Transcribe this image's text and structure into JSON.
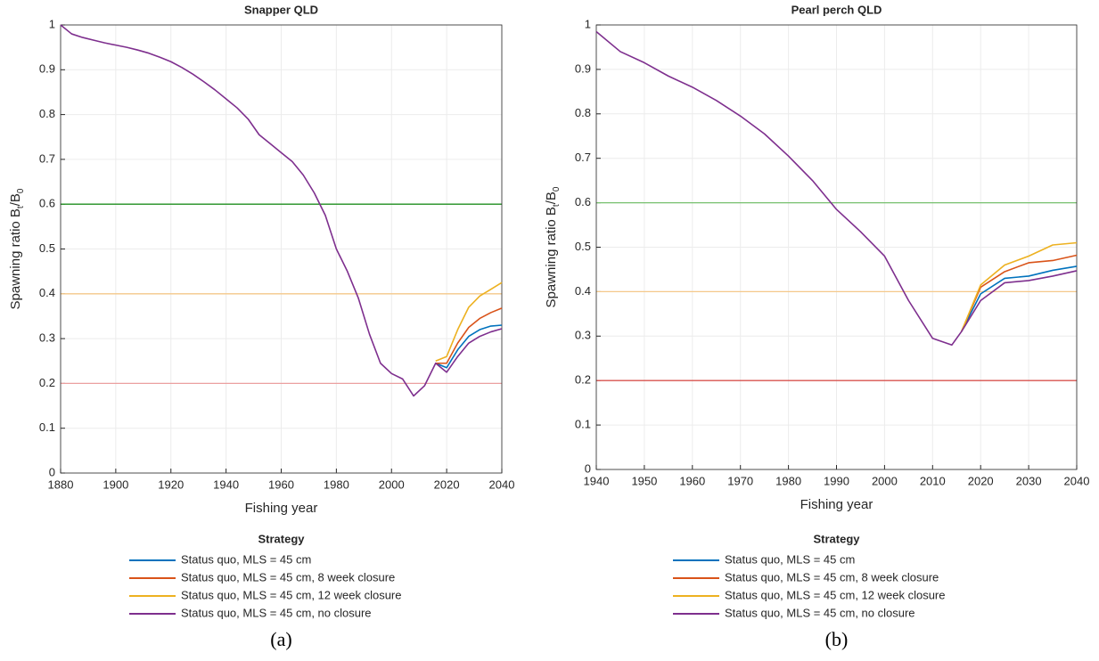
{
  "chart_data": [
    {
      "type": "line",
      "title": "Snapper QLD",
      "xlabel": "Fishing year",
      "ylabel": [
        "Spawning ratio B",
        "t",
        "/B",
        "0"
      ],
      "xlim": [
        1880,
        2040
      ],
      "ylim": [
        0,
        1
      ],
      "xticks": [
        1880,
        1900,
        1920,
        1940,
        1960,
        1980,
        2000,
        2020,
        2040
      ],
      "yticks": [
        0,
        0.1,
        0.2,
        0.3,
        0.4,
        0.5,
        0.6,
        0.7,
        0.8,
        0.9,
        1
      ],
      "grid": true,
      "legend": "bottom",
      "legend_title": "Strategy",
      "caption": "(a)",
      "reference_lines": [
        {
          "value": 0.6,
          "color": "#1f8f1f"
        },
        {
          "value": 0.4,
          "color": "#f5c98a"
        },
        {
          "value": 0.2,
          "color": "#eba0a0"
        }
      ],
      "x": [
        1880,
        1884,
        1888,
        1892,
        1896,
        1900,
        1904,
        1908,
        1912,
        1916,
        1920,
        1924,
        1928,
        1932,
        1936,
        1940,
        1944,
        1948,
        1952,
        1956,
        1960,
        1964,
        1968,
        1972,
        1976,
        1980,
        1984,
        1988,
        1992,
        1996,
        2000,
        2004,
        2008,
        2012,
        2016,
        2020,
        2024,
        2028,
        2032,
        2036,
        2040
      ],
      "series": [
        {
          "name": "Status quo, MLS = 45 cm",
          "color": "#0072bd",
          "values": [
            null,
            null,
            null,
            null,
            null,
            null,
            null,
            null,
            null,
            null,
            null,
            null,
            null,
            null,
            null,
            null,
            null,
            null,
            null,
            null,
            null,
            null,
            null,
            null,
            null,
            null,
            null,
            null,
            null,
            null,
            null,
            null,
            null,
            null,
            0.245,
            0.235,
            0.275,
            0.305,
            0.32,
            0.328,
            0.33
          ]
        },
        {
          "name": "Status quo, MLS = 45 cm, 8 week closure",
          "color": "#d95319",
          "values": [
            null,
            null,
            null,
            null,
            null,
            null,
            null,
            null,
            null,
            null,
            null,
            null,
            null,
            null,
            null,
            null,
            null,
            null,
            null,
            null,
            null,
            null,
            null,
            null,
            null,
            null,
            null,
            null,
            null,
            null,
            null,
            null,
            null,
            null,
            0.245,
            0.245,
            0.29,
            0.325,
            0.345,
            0.358,
            0.368
          ]
        },
        {
          "name": "Status quo, MLS = 45 cm, 12 week closure",
          "color": "#edb120",
          "values": [
            null,
            null,
            null,
            null,
            null,
            null,
            null,
            null,
            null,
            null,
            null,
            null,
            null,
            null,
            null,
            null,
            null,
            null,
            null,
            null,
            null,
            null,
            null,
            null,
            null,
            null,
            null,
            null,
            null,
            null,
            null,
            null,
            null,
            null,
            0.25,
            0.26,
            0.32,
            0.37,
            0.395,
            0.41,
            0.425
          ]
        },
        {
          "name": "Status quo, MLS = 45 cm, no closure",
          "color": "#7e2f8e",
          "values": [
            1.0,
            0.98,
            0.972,
            0.966,
            0.96,
            0.955,
            0.95,
            0.944,
            0.937,
            0.928,
            0.918,
            0.905,
            0.89,
            0.873,
            0.855,
            0.835,
            0.815,
            0.79,
            0.755,
            0.735,
            0.715,
            0.695,
            0.665,
            0.625,
            0.575,
            0.5,
            0.45,
            0.39,
            0.31,
            0.245,
            0.222,
            0.21,
            0.172,
            0.195,
            0.245,
            0.225,
            0.26,
            0.29,
            0.305,
            0.315,
            0.322
          ]
        }
      ]
    },
    {
      "type": "line",
      "title": "Pearl perch QLD",
      "xlabel": "Fishing year",
      "ylabel": [
        "Spawning ratio B",
        "t",
        "/B",
        "0"
      ],
      "xlim": [
        1940,
        2040
      ],
      "ylim": [
        0,
        1
      ],
      "xticks": [
        1940,
        1950,
        1960,
        1970,
        1980,
        1990,
        2000,
        2010,
        2020,
        2030,
        2040
      ],
      "yticks": [
        0,
        0.1,
        0.2,
        0.3,
        0.4,
        0.5,
        0.6,
        0.7,
        0.8,
        0.9,
        1
      ],
      "grid": true,
      "legend": "bottom",
      "legend_title": "Strategy",
      "caption": "(b)",
      "reference_lines": [
        {
          "value": 0.6,
          "color": "#77c06e"
        },
        {
          "value": 0.4,
          "color": "#f5c98a"
        },
        {
          "value": 0.2,
          "color": "#d9534f"
        }
      ],
      "x": [
        1940,
        1945,
        1950,
        1955,
        1960,
        1965,
        1970,
        1975,
        1980,
        1985,
        1990,
        1995,
        2000,
        2005,
        2010,
        2014,
        2016,
        2020,
        2025,
        2030,
        2035,
        2040
      ],
      "series": [
        {
          "name": "Status quo, MLS = 45 cm",
          "color": "#0072bd",
          "values": [
            null,
            null,
            null,
            null,
            null,
            null,
            null,
            null,
            null,
            null,
            null,
            null,
            null,
            null,
            null,
            null,
            0.31,
            0.395,
            0.43,
            0.435,
            0.448,
            0.457
          ]
        },
        {
          "name": "Status quo, MLS = 45 cm, 8 week closure",
          "color": "#d95319",
          "values": [
            null,
            null,
            null,
            null,
            null,
            null,
            null,
            null,
            null,
            null,
            null,
            null,
            null,
            null,
            null,
            null,
            0.31,
            0.41,
            0.445,
            0.465,
            0.47,
            0.482
          ]
        },
        {
          "name": "Status quo, MLS = 45 cm, 12 week closure",
          "color": "#edb120",
          "values": [
            null,
            null,
            null,
            null,
            null,
            null,
            null,
            null,
            null,
            null,
            null,
            null,
            null,
            null,
            null,
            null,
            0.31,
            0.415,
            0.46,
            0.48,
            0.505,
            0.51
          ]
        },
        {
          "name": "Status quo, MLS = 45 cm, no closure",
          "color": "#7e2f8e",
          "values": [
            0.985,
            0.94,
            0.915,
            0.885,
            0.86,
            0.83,
            0.795,
            0.755,
            0.705,
            0.65,
            0.585,
            0.535,
            0.48,
            0.38,
            0.295,
            0.28,
            0.31,
            0.38,
            0.42,
            0.425,
            0.435,
            0.447
          ]
        }
      ]
    }
  ]
}
